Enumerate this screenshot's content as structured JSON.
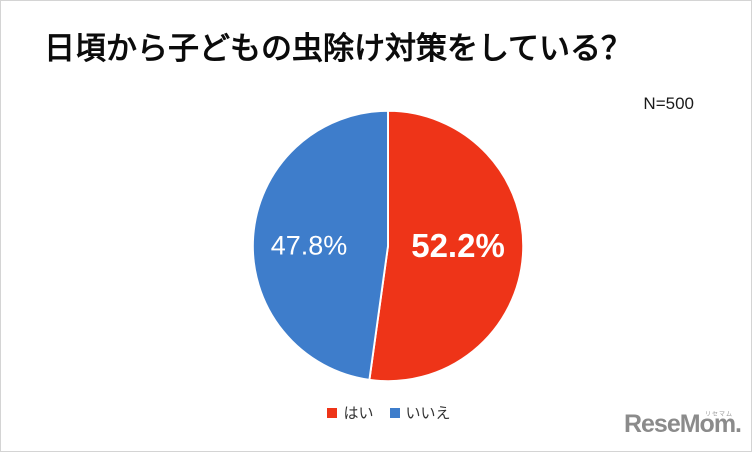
{
  "chart_data": {
    "type": "pie",
    "title": "日頃から子どもの虫除け対策をしている？",
    "n_label": "N=500",
    "categories": [
      "はい",
      "いいえ"
    ],
    "values": [
      52.2,
      47.8
    ],
    "labels": [
      "52.2%",
      "47.8%"
    ],
    "colors": [
      "#ee3418",
      "#3e7dcb"
    ],
    "label_color": "#ffffff",
    "start_angle": "top",
    "direction": "clockwise",
    "legend_position": "bottom"
  },
  "legend": {
    "items": [
      {
        "label": "はい"
      },
      {
        "label": "いいえ"
      }
    ]
  },
  "logo": {
    "wordmark": "ReseMom.",
    "ruby": "リセマム"
  }
}
